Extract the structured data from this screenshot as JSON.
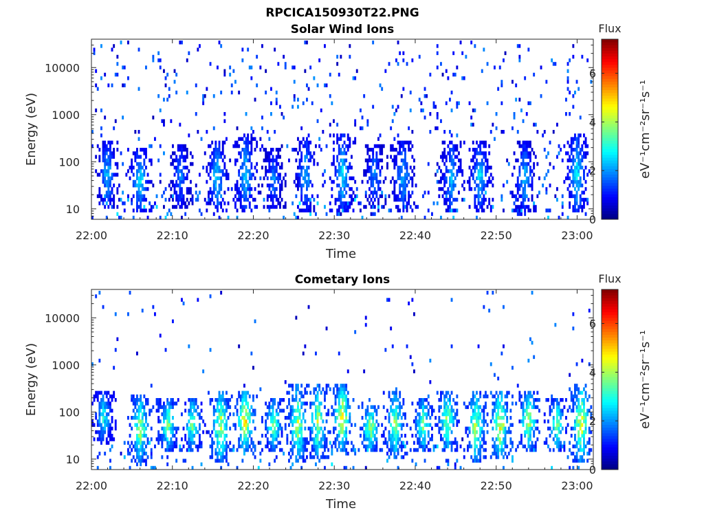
{
  "figure": {
    "title": "RPCICA150930T22.PNG"
  },
  "colors": {
    "colormap": "jet",
    "axis": "#262626",
    "background": "#ffffff",
    "title": "#000000"
  },
  "chart_data": [
    {
      "type": "heatmap",
      "title": "Solar Wind Ions",
      "xlabel": "Time",
      "ylabel": "Energy (eV)",
      "x_range": [
        "22:00",
        "23:02"
      ],
      "x_ticks": [
        "22:00",
        "22:10",
        "22:20",
        "22:30",
        "22:40",
        "22:50",
        "23:00"
      ],
      "y_scale": "log",
      "y_range": [
        6,
        40000
      ],
      "y_ticks": [
        "10",
        "100",
        "1000",
        "10000"
      ],
      "y_tick_values": [
        10,
        100,
        1000,
        10000
      ],
      "colorbar": {
        "title": "Flux",
        "label": "eV⁻¹cm⁻²sr⁻¹s⁻¹",
        "range": [
          0,
          7.4
        ],
        "ticks": [
          "0",
          "2",
          "4",
          "6"
        ],
        "tick_values": [
          0,
          2,
          4,
          6
        ]
      },
      "description": "Sparse low-flux (values ~0.5-2.5) speckle across all energies with denser low-energy (10-300 eV) bands",
      "bursts": [
        {
          "t": 2.0,
          "e_lo": 10,
          "e_hi": 300,
          "peak": 2.6
        },
        {
          "t": 6.0,
          "e_lo": 8,
          "e_hi": 200,
          "peak": 3.0
        },
        {
          "t": 11.0,
          "e_lo": 10,
          "e_hi": 250,
          "peak": 2.2
        },
        {
          "t": 15.5,
          "e_lo": 8,
          "e_hi": 300,
          "peak": 2.8
        },
        {
          "t": 19.0,
          "e_lo": 8,
          "e_hi": 400,
          "peak": 2.8
        },
        {
          "t": 22.5,
          "e_lo": 10,
          "e_hi": 200,
          "peak": 2.2
        },
        {
          "t": 26.5,
          "e_lo": 8,
          "e_hi": 350,
          "peak": 2.6
        },
        {
          "t": 31.0,
          "e_lo": 8,
          "e_hi": 400,
          "peak": 3.0
        },
        {
          "t": 35.0,
          "e_lo": 10,
          "e_hi": 250,
          "peak": 2.2
        },
        {
          "t": 38.5,
          "e_lo": 8,
          "e_hi": 300,
          "peak": 2.6
        },
        {
          "t": 44.5,
          "e_lo": 8,
          "e_hi": 300,
          "peak": 2.6
        },
        {
          "t": 48.0,
          "e_lo": 8,
          "e_hi": 300,
          "peak": 2.8
        },
        {
          "t": 53.5,
          "e_lo": 8,
          "e_hi": 300,
          "peak": 2.6
        },
        {
          "t": 60.0,
          "e_lo": 8,
          "e_hi": 400,
          "peak": 3.2
        }
      ]
    },
    {
      "type": "heatmap",
      "title": "Cometary Ions",
      "xlabel": "Time",
      "ylabel": "Energy (eV)",
      "x_range": [
        "22:00",
        "23:02"
      ],
      "x_ticks": [
        "22:00",
        "22:10",
        "22:20",
        "22:30",
        "22:40",
        "22:50",
        "23:00"
      ],
      "y_scale": "log",
      "y_range": [
        6,
        40000
      ],
      "y_ticks": [
        "10",
        "100",
        "1000",
        "10000"
      ],
      "y_tick_values": [
        10,
        100,
        1000,
        10000
      ],
      "colorbar": {
        "title": "Flux",
        "label": "eV⁻¹cm⁻²sr⁻¹s⁻¹",
        "range": [
          0,
          7.4
        ],
        "ticks": [
          "0",
          "2",
          "4",
          "6"
        ],
        "tick_values": [
          0,
          2,
          4,
          6
        ]
      },
      "description": "Periodic higher-flux bursts (~4-5.5) centered near 30-100 eV, sparse speckle above 1000 eV",
      "bursts": [
        {
          "t": 1.5,
          "e_lo": 20,
          "e_hi": 300,
          "peak": 3.2
        },
        {
          "t": 6.0,
          "e_lo": 8,
          "e_hi": 250,
          "peak": 4.6
        },
        {
          "t": 9.5,
          "e_lo": 15,
          "e_hi": 200,
          "peak": 4.2
        },
        {
          "t": 12.5,
          "e_lo": 15,
          "e_hi": 200,
          "peak": 4.0
        },
        {
          "t": 16.0,
          "e_lo": 8,
          "e_hi": 300,
          "peak": 4.8
        },
        {
          "t": 19.0,
          "e_lo": 15,
          "e_hi": 300,
          "peak": 5.3
        },
        {
          "t": 22.5,
          "e_lo": 15,
          "e_hi": 200,
          "peak": 4.2
        },
        {
          "t": 25.5,
          "e_lo": 8,
          "e_hi": 400,
          "peak": 4.6
        },
        {
          "t": 28.0,
          "e_lo": 10,
          "e_hi": 400,
          "peak": 4.6
        },
        {
          "t": 31.0,
          "e_lo": 15,
          "e_hi": 400,
          "peak": 5.2
        },
        {
          "t": 34.5,
          "e_lo": 15,
          "e_hi": 150,
          "peak": 4.6
        },
        {
          "t": 37.5,
          "e_lo": 10,
          "e_hi": 300,
          "peak": 4.4
        },
        {
          "t": 41.0,
          "e_lo": 15,
          "e_hi": 200,
          "peak": 4.2
        },
        {
          "t": 44.0,
          "e_lo": 15,
          "e_hi": 300,
          "peak": 4.6
        },
        {
          "t": 47.5,
          "e_lo": 8,
          "e_hi": 300,
          "peak": 4.6
        },
        {
          "t": 50.5,
          "e_lo": 10,
          "e_hi": 300,
          "peak": 5.2
        },
        {
          "t": 54.0,
          "e_lo": 15,
          "e_hi": 300,
          "peak": 4.6
        },
        {
          "t": 57.5,
          "e_lo": 15,
          "e_hi": 200,
          "peak": 4.2
        },
        {
          "t": 60.5,
          "e_lo": 8,
          "e_hi": 400,
          "peak": 5.0
        }
      ]
    }
  ]
}
